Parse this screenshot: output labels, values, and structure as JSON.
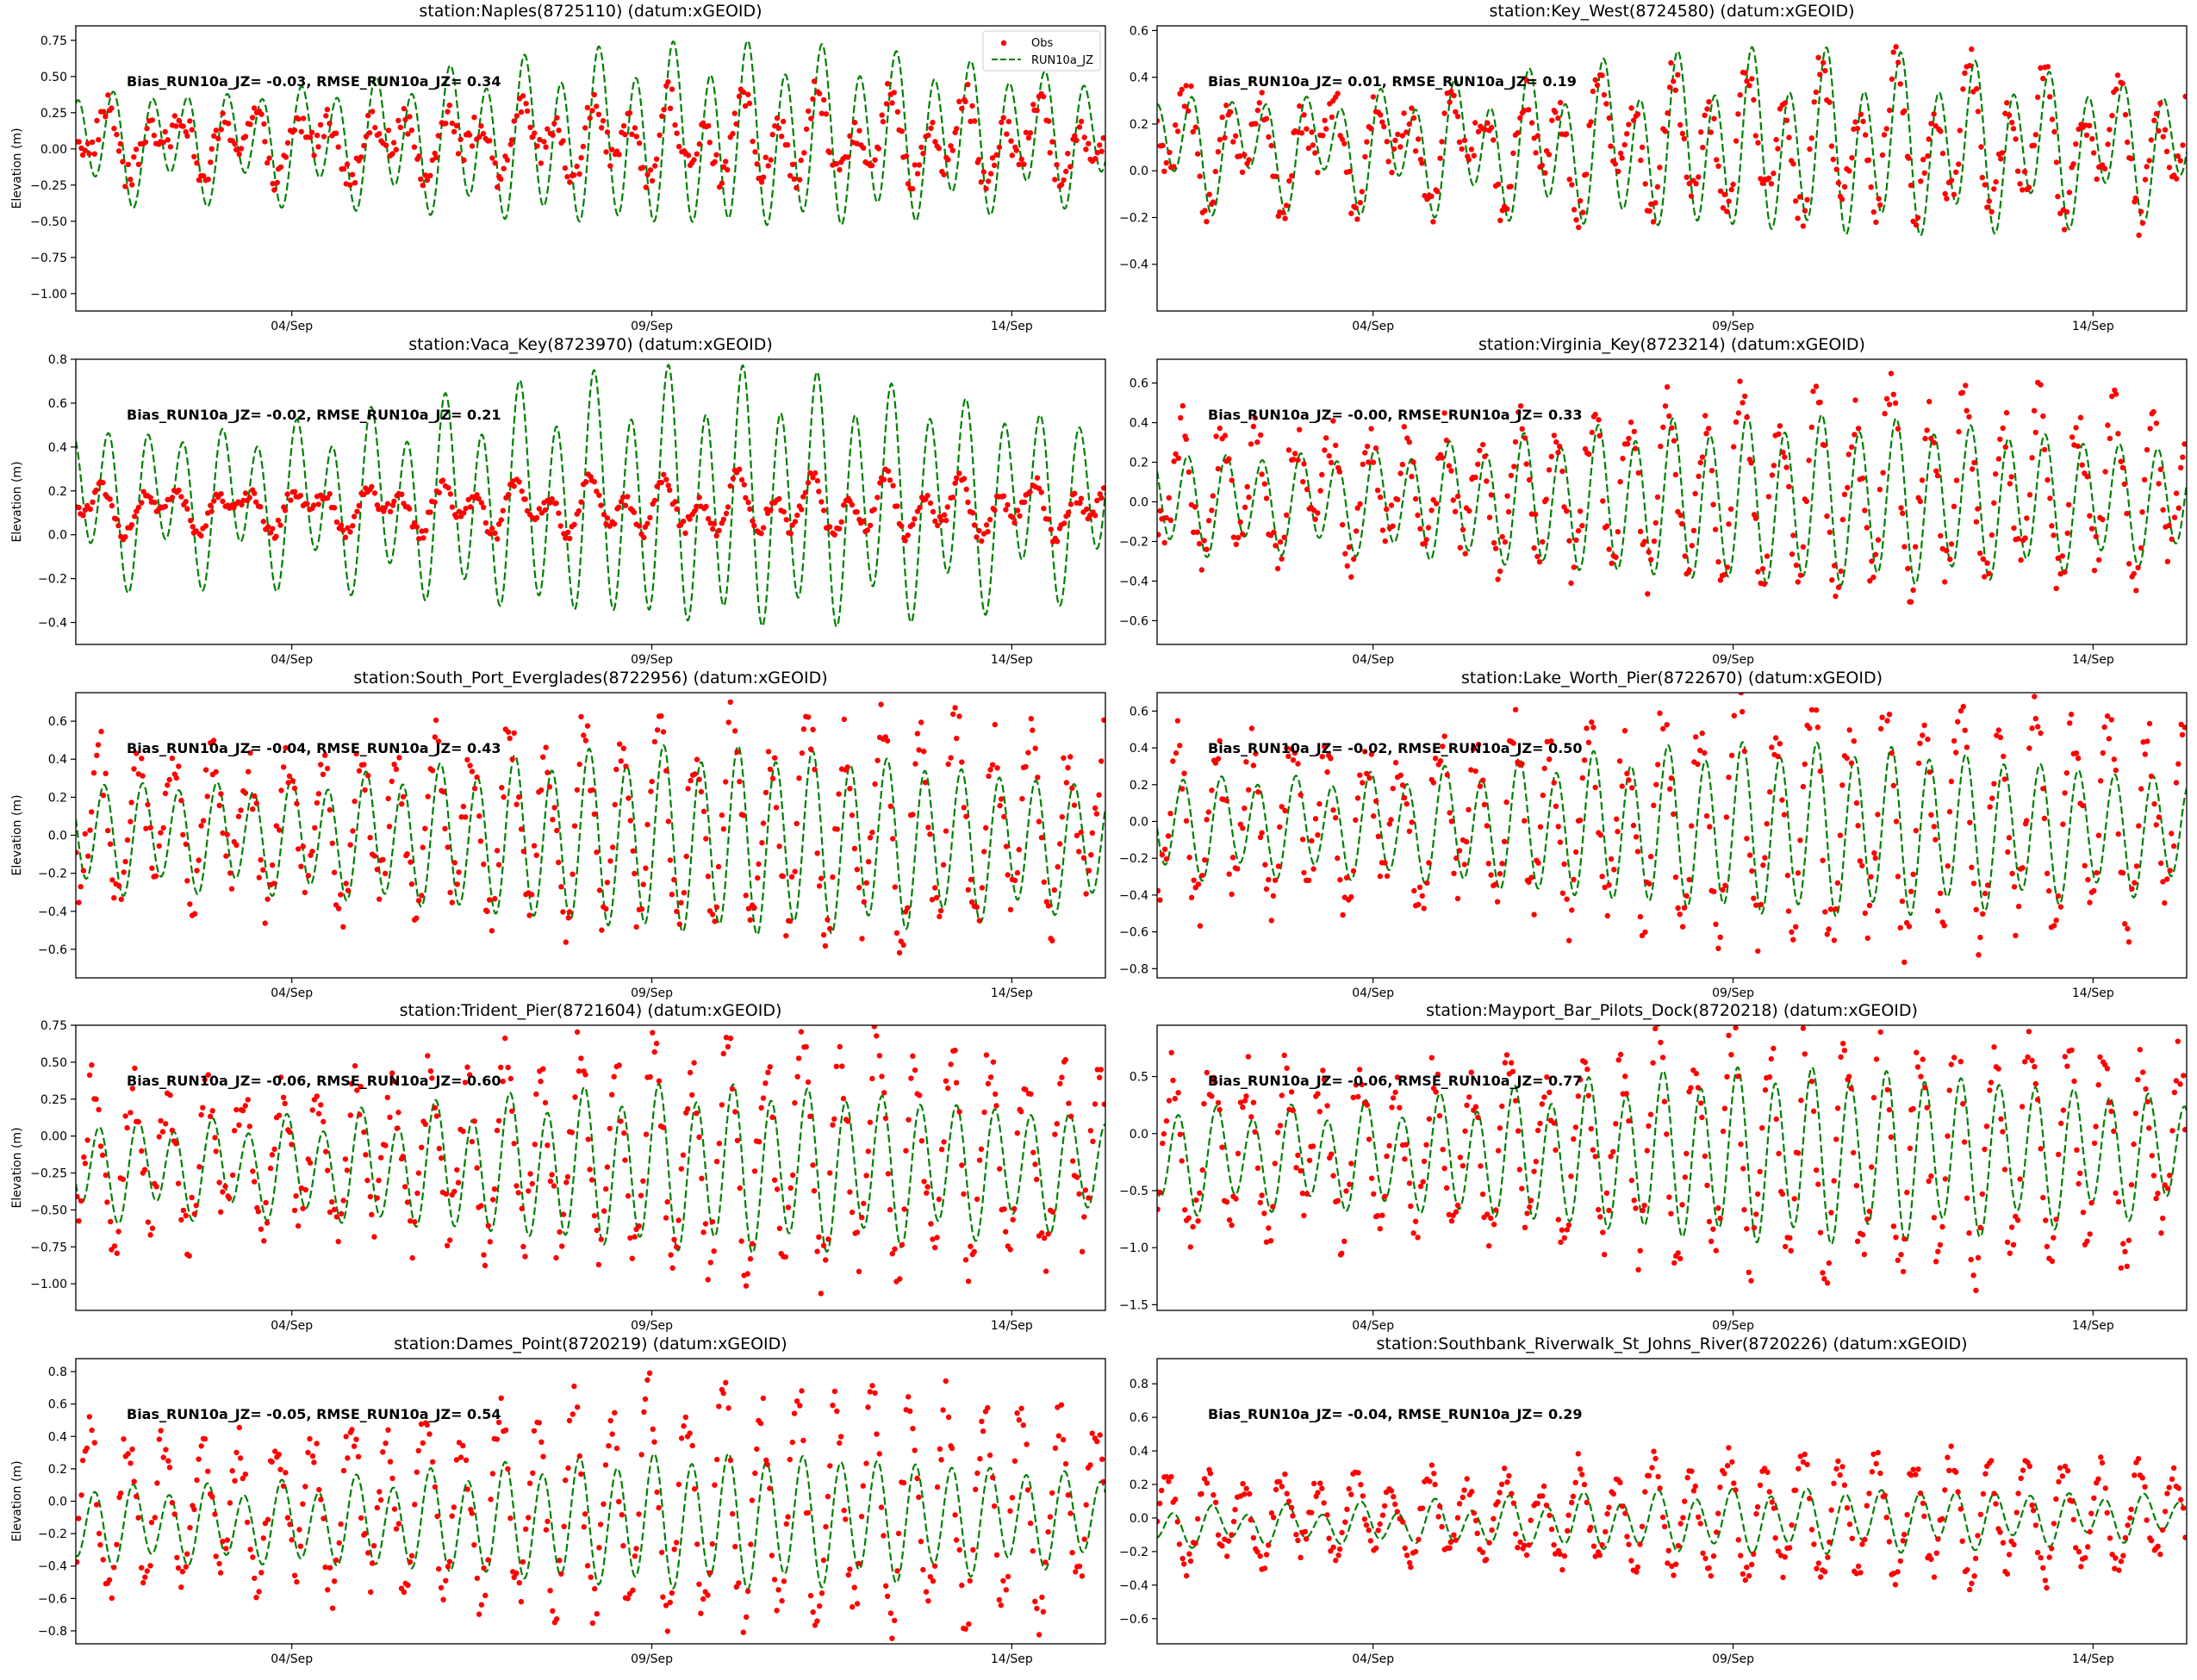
{
  "figure": {
    "legend": {
      "obs_label": "Obs",
      "model_label": "RUN10a_JZ",
      "placement": "upper-right (first panel)"
    },
    "colors": {
      "obs": "#ff0000",
      "model": "#008000"
    }
  },
  "chart_data": [
    {
      "type": "scatter+line",
      "title": "station:Naples(8725110) (datum:xGEOID)",
      "ylabel": "Elevation (m)",
      "stats": "Bias_RUN10a_JZ= -0.03, RMSE_RUN10a_JZ=  0.34",
      "xlim": [
        0.5,
        14.8
      ],
      "ylim": [
        -1.12,
        0.85
      ],
      "xticks": [
        {
          "v": 3.5,
          "label": "04/Sep"
        },
        {
          "v": 8.5,
          "label": "09/Sep"
        },
        {
          "v": 13.5,
          "label": "14/Sep"
        }
      ],
      "yticks": [
        -1.0,
        -0.75,
        -0.5,
        -0.25,
        0.0,
        0.25,
        0.5,
        0.75
      ],
      "ytick_labels": [
        "−1.00",
        "−0.75",
        "−0.50",
        "−0.25",
        "0.00",
        "0.25",
        "0.50",
        "0.75"
      ],
      "model": {
        "mean": 0.03,
        "m2": 0.44,
        "k1": 0.12,
        "trend": 0.06
      },
      "obs": {
        "mean": 0.05,
        "m2": 0.18,
        "k1": 0.13,
        "noise": 0.1
      }
    },
    {
      "type": "scatter+line",
      "title": "station:Key_West(8724580) (datum:xGEOID)",
      "ylabel": "",
      "stats": "Bias_RUN10a_JZ=  0.01, RMSE_RUN10a_JZ=  0.19",
      "xlim": [
        0.5,
        14.8
      ],
      "ylim": [
        -0.6,
        0.62
      ],
      "xticks": [
        {
          "v": 3.5,
          "label": "04/Sep"
        },
        {
          "v": 8.5,
          "label": "09/Sep"
        },
        {
          "v": 13.5,
          "label": "14/Sep"
        }
      ],
      "yticks": [
        -0.4,
        -0.2,
        0.0,
        0.2,
        0.4,
        0.6
      ],
      "ytick_labels": [
        "−0.4",
        "−0.2",
        "0.0",
        "0.2",
        "0.4",
        "0.6"
      ],
      "model": {
        "mean": 0.1,
        "m2": 0.26,
        "k1": 0.1,
        "trend": 0.0
      },
      "obs": {
        "mean": 0.1,
        "m2": 0.2,
        "k1": 0.12,
        "noise": 0.08
      }
    },
    {
      "type": "scatter+line",
      "title": "station:Vaca_Key(8723970) (datum:xGEOID)",
      "ylabel": "Elevation (m)",
      "stats": "Bias_RUN10a_JZ= -0.02, RMSE_RUN10a_JZ=  0.21",
      "xlim": [
        0.5,
        14.8
      ],
      "ylim": [
        -0.5,
        0.8
      ],
      "xticks": [
        {
          "v": 3.5,
          "label": "04/Sep"
        },
        {
          "v": 8.5,
          "label": "09/Sep"
        },
        {
          "v": 13.5,
          "label": "14/Sep"
        }
      ],
      "yticks": [
        -0.4,
        -0.2,
        0.0,
        0.2,
        0.4,
        0.6,
        0.8
      ],
      "ytick_labels": [
        "−0.4",
        "−0.2",
        "0.0",
        "0.2",
        "0.4",
        "0.6",
        "0.8"
      ],
      "model": {
        "mean": 0.15,
        "m2": 0.4,
        "k1": 0.12,
        "trend": 0.0
      },
      "obs": {
        "mean": 0.12,
        "m2": 0.08,
        "k1": 0.06,
        "noise": 0.03
      }
    },
    {
      "type": "scatter+line",
      "title": "station:Virginia_Key(8723214) (datum:xGEOID)",
      "ylabel": "",
      "stats": "Bias_RUN10a_JZ= -0.00, RMSE_RUN10a_JZ=  0.33",
      "xlim": [
        0.5,
        14.8
      ],
      "ylim": [
        -0.72,
        0.72
      ],
      "xticks": [
        {
          "v": 3.5,
          "label": "04/Sep"
        },
        {
          "v": 8.5,
          "label": "09/Sep"
        },
        {
          "v": 13.5,
          "label": "14/Sep"
        }
      ],
      "yticks": [
        -0.6,
        -0.4,
        -0.2,
        0.0,
        0.2,
        0.4,
        0.6
      ],
      "ytick_labels": [
        "−0.6",
        "−0.4",
        "−0.2",
        "0.0",
        "0.2",
        "0.4",
        "0.6"
      ],
      "model": {
        "mean": 0.0,
        "m2": 0.31,
        "k1": 0.05,
        "trend": 0.0
      },
      "obs": {
        "mean": 0.05,
        "m2": 0.35,
        "k1": 0.08,
        "noise": 0.12
      }
    },
    {
      "type": "scatter+line",
      "title": "station:South_Port_Everglades(8722956) (datum:xGEOID)",
      "ylabel": "Elevation (m)",
      "stats": "Bias_RUN10a_JZ= -0.04, RMSE_RUN10a_JZ=  0.43",
      "xlim": [
        0.5,
        14.8
      ],
      "ylim": [
        -0.75,
        0.75
      ],
      "xticks": [
        {
          "v": 3.5,
          "label": "04/Sep"
        },
        {
          "v": 8.5,
          "label": "09/Sep"
        },
        {
          "v": 13.5,
          "label": "14/Sep"
        }
      ],
      "yticks": [
        -0.6,
        -0.4,
        -0.2,
        0.0,
        0.2,
        0.4,
        0.6
      ],
      "ytick_labels": [
        "−0.6",
        "−0.4",
        "−0.2",
        "0.0",
        "0.2",
        "0.4",
        "0.6"
      ],
      "model": {
        "mean": 0.0,
        "m2": 0.36,
        "k1": 0.05,
        "trend": -0.05
      },
      "obs": {
        "mean": 0.05,
        "m2": 0.42,
        "k1": 0.1,
        "noise": 0.14
      }
    },
    {
      "type": "scatter+line",
      "title": "station:Lake_Worth_Pier(8722670) (datum:xGEOID)",
      "ylabel": "",
      "stats": "Bias_RUN10a_JZ= -0.02, RMSE_RUN10a_JZ=  0.50",
      "xlim": [
        0.5,
        14.8
      ],
      "ylim": [
        -0.85,
        0.7
      ],
      "xticks": [
        {
          "v": 3.5,
          "label": "04/Sep"
        },
        {
          "v": 8.5,
          "label": "09/Sep"
        },
        {
          "v": 13.5,
          "label": "14/Sep"
        }
      ],
      "yticks": [
        -0.8,
        -0.6,
        -0.4,
        -0.2,
        0.0,
        0.2,
        0.4,
        0.6
      ],
      "ytick_labels": [
        "−0.8",
        "−0.6",
        "−0.4",
        "−0.2",
        "0.0",
        "0.2",
        "0.4",
        "0.6"
      ],
      "model": {
        "mean": -0.02,
        "m2": 0.34,
        "k1": 0.05,
        "trend": -0.04
      },
      "obs": {
        "mean": 0.0,
        "m2": 0.48,
        "k1": 0.1,
        "noise": 0.15
      }
    },
    {
      "type": "scatter+line",
      "title": "station:Trident_Pier(8721604) (datum:xGEOID)",
      "ylabel": "Elevation (m)",
      "stats": "Bias_RUN10a_JZ= -0.06, RMSE_RUN10a_JZ=  0.60",
      "xlim": [
        0.5,
        14.8
      ],
      "ylim": [
        -1.18,
        0.75
      ],
      "xticks": [
        {
          "v": 3.5,
          "label": "04/Sep"
        },
        {
          "v": 8.5,
          "label": "09/Sep"
        },
        {
          "v": 13.5,
          "label": "14/Sep"
        }
      ],
      "yticks": [
        -1.0,
        -0.75,
        -0.5,
        -0.25,
        0.0,
        0.25,
        0.5,
        0.75
      ],
      "ytick_labels": [
        "−1.00",
        "−0.75",
        "−0.50",
        "−0.25",
        "0.00",
        "0.25",
        "0.50",
        "0.75"
      ],
      "model": {
        "mean": -0.22,
        "m2": 0.4,
        "k1": 0.08,
        "trend": 0.0
      },
      "obs": {
        "mean": -0.15,
        "m2": 0.58,
        "k1": 0.1,
        "noise": 0.18
      }
    },
    {
      "type": "scatter+line",
      "title": "station:Mayport_Bar_Pilots_Dock(8720218) (datum:xGEOID)",
      "ylabel": "",
      "stats": "Bias_RUN10a_JZ= -0.06, RMSE_RUN10a_JZ=  0.77",
      "xlim": [
        0.5,
        14.8
      ],
      "ylim": [
        -1.55,
        0.95
      ],
      "xticks": [
        {
          "v": 3.5,
          "label": "04/Sep"
        },
        {
          "v": 8.5,
          "label": "09/Sep"
        },
        {
          "v": 13.5,
          "label": "14/Sep"
        }
      ],
      "yticks": [
        -1.5,
        -1.0,
        -0.5,
        0.0,
        0.5
      ],
      "ytick_labels": [
        "−1.5",
        "−1.0",
        "−0.5",
        "0.0",
        "0.5"
      ],
      "model": {
        "mean": -0.22,
        "m2": 0.55,
        "k1": 0.1,
        "trend": 0.05
      },
      "obs": {
        "mean": -0.15,
        "m2": 0.8,
        "k1": 0.12,
        "noise": 0.22
      }
    },
    {
      "type": "scatter+line",
      "title": "station:Dames_Point(8720219) (datum:xGEOID)",
      "ylabel": "Elevation (m)",
      "stats": "Bias_RUN10a_JZ= -0.05, RMSE_RUN10a_JZ=  0.54",
      "xlim": [
        0.5,
        14.8
      ],
      "ylim": [
        -0.88,
        0.88
      ],
      "xticks": [
        {
          "v": 3.5,
          "label": "04/Sep"
        },
        {
          "v": 8.5,
          "label": "09/Sep"
        },
        {
          "v": 13.5,
          "label": "14/Sep"
        }
      ],
      "yticks": [
        -0.8,
        -0.6,
        -0.4,
        -0.2,
        0.0,
        0.2,
        0.4,
        0.6,
        0.8
      ],
      "ytick_labels": [
        "−0.8",
        "−0.6",
        "−0.4",
        "−0.2",
        "0.0",
        "0.2",
        "0.4",
        "0.6",
        "0.8"
      ],
      "model": {
        "mean": -0.15,
        "m2": 0.3,
        "k1": 0.05,
        "trend": 0.05
      },
      "obs": {
        "mean": -0.05,
        "m2": 0.55,
        "k1": 0.08,
        "noise": 0.14
      }
    },
    {
      "type": "scatter+line",
      "title": "station:Southbank_Riverwalk_St_Johns_River(8720226) (datum:xGEOID)",
      "ylabel": "",
      "stats": "Bias_RUN10a_JZ= -0.04, RMSE_RUN10a_JZ=  0.29",
      "xlim": [
        0.5,
        14.8
      ],
      "ylim": [
        -0.75,
        0.95
      ],
      "xticks": [
        {
          "v": 3.5,
          "label": "04/Sep"
        },
        {
          "v": 8.5,
          "label": "09/Sep"
        },
        {
          "v": 13.5,
          "label": "14/Sep"
        }
      ],
      "yticks": [
        -0.6,
        -0.4,
        -0.2,
        0.0,
        0.2,
        0.4,
        0.6,
        0.8
      ],
      "ytick_labels": [
        "−0.6",
        "−0.4",
        "−0.2",
        "0.0",
        "0.2",
        "0.4",
        "0.6",
        "0.8"
      ],
      "model": {
        "mean": -0.05,
        "m2": 0.13,
        "k1": 0.04,
        "trend": 0.06
      },
      "obs": {
        "mean": 0.0,
        "m2": 0.28,
        "k1": 0.05,
        "noise": 0.07
      }
    }
  ]
}
